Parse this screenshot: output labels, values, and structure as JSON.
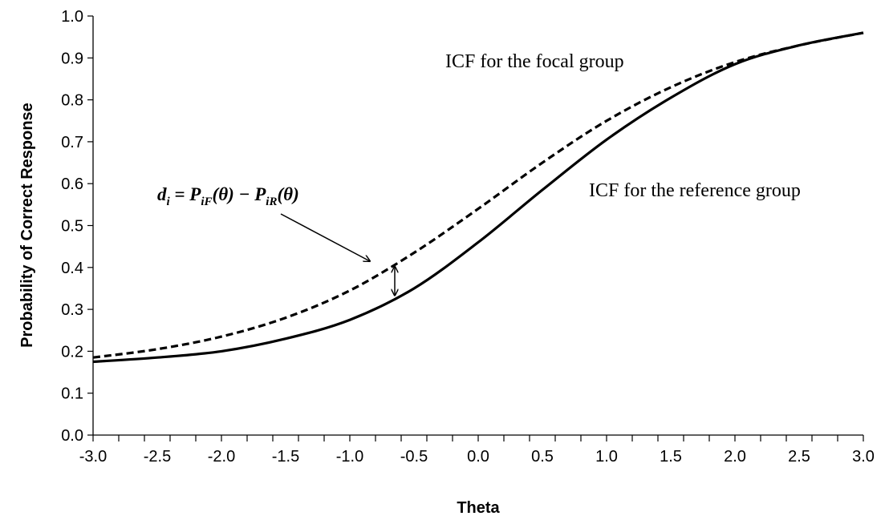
{
  "chart_data": {
    "type": "line",
    "title": "",
    "xlabel": "Theta",
    "ylabel": "Probability of Correct Response",
    "xlim": [
      -3.0,
      3.0
    ],
    "ylim": [
      0.0,
      1.0
    ],
    "x_ticks": [
      "-3.0",
      "-2.5",
      "-2.0",
      "-1.5",
      "-1.0",
      "-0.5",
      "0.0",
      "0.5",
      "1.0",
      "1.5",
      "2.0",
      "2.5",
      "3.0"
    ],
    "y_ticks": [
      "0.0",
      "0.1",
      "0.2",
      "0.3",
      "0.4",
      "0.5",
      "0.6",
      "0.7",
      "0.8",
      "0.9",
      "1.0"
    ],
    "grid": false,
    "legend": "none",
    "x": [
      -3.0,
      -2.5,
      -2.0,
      -1.5,
      -1.0,
      -0.5,
      0.0,
      0.5,
      1.0,
      1.5,
      2.0,
      2.5,
      3.0
    ],
    "series": [
      {
        "style": "dashed",
        "color": "#000000",
        "values": [
          0.185,
          0.205,
          0.235,
          0.28,
          0.345,
          0.435,
          0.54,
          0.65,
          0.75,
          0.83,
          0.89,
          0.93,
          0.96
        ]
      },
      {
        "style": "solid",
        "color": "#000000",
        "values": [
          0.175,
          0.185,
          0.2,
          0.23,
          0.275,
          0.35,
          0.46,
          0.585,
          0.705,
          0.805,
          0.885,
          0.93,
          0.96
        ]
      }
    ],
    "annotations": {
      "focal_label": "ICF for the focal group",
      "reference_label": "ICF for the reference group",
      "formula": {
        "d": "d",
        "d_sub": "i",
        "eq": " = ",
        "p1": "P",
        "p1_sub": "iF",
        "theta1": "(θ)",
        "minus": " − ",
        "p2": "P",
        "p2_sub": "iR",
        "theta2": "(θ)"
      },
      "gap_at_theta": -0.65
    }
  }
}
